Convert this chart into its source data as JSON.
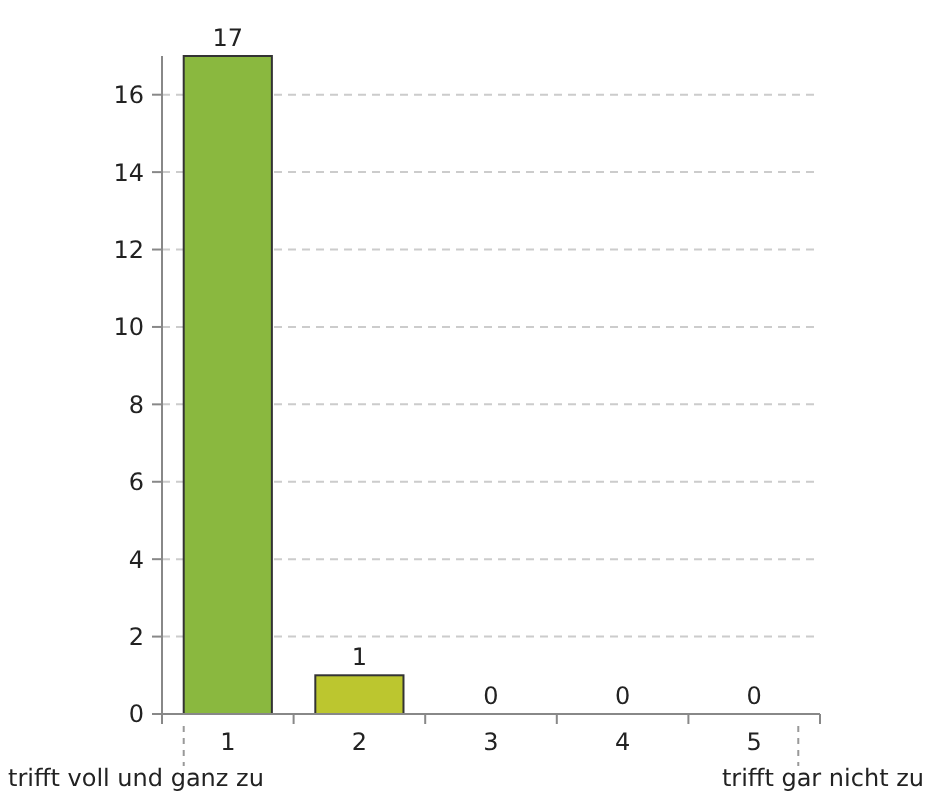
{
  "chart_data": {
    "type": "bar",
    "categories": [
      "1",
      "2",
      "3",
      "4",
      "5"
    ],
    "values": [
      17,
      1,
      0,
      0,
      0
    ],
    "colors": [
      "#8ab83f",
      "#bcc62f",
      "#b0c030",
      "#b0c030",
      "#b0c030"
    ],
    "ylim": [
      0,
      17
    ],
    "yticks": [
      0,
      2,
      4,
      6,
      8,
      10,
      12,
      14,
      16
    ],
    "grid": "y",
    "data_labels": true,
    "annotations": [
      "trifft voll und ganz zu",
      "trifft gar nicht zu"
    ]
  }
}
